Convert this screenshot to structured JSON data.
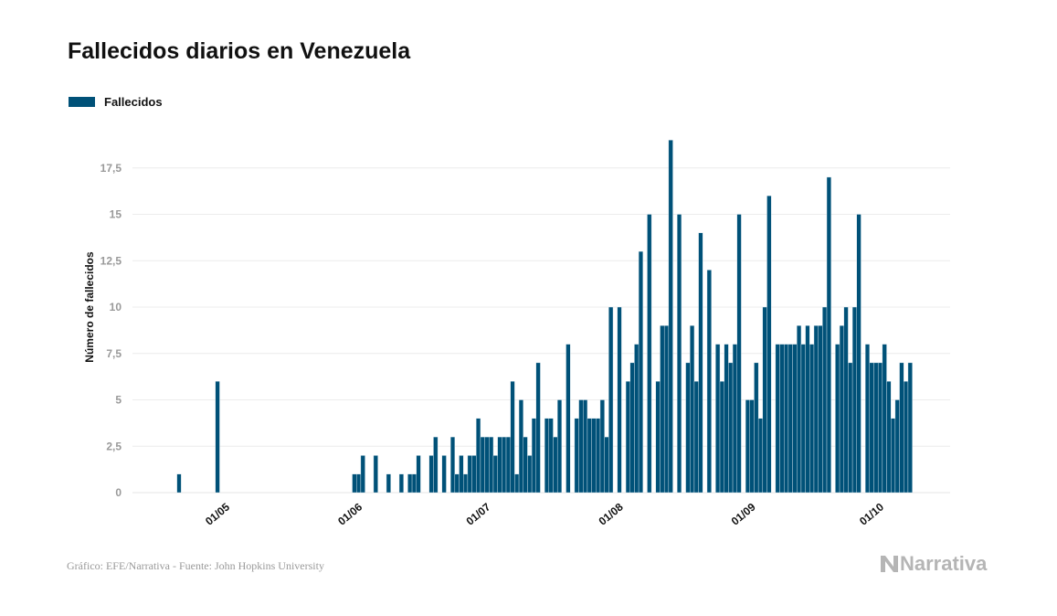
{
  "chart_data": {
    "type": "bar",
    "title": "Fallecidos diarios en Venezuela",
    "ylabel": "Número de fallecidos",
    "xlabel": "",
    "ylim": [
      0,
      19.5
    ],
    "yticks": [
      "0",
      "2,5",
      "5",
      "7,5",
      "10",
      "12,5",
      "15",
      "17,5"
    ],
    "ytick_values": [
      0,
      2.5,
      5,
      7.5,
      10,
      12.5,
      15,
      17.5
    ],
    "xtick_labels": [
      "01/05",
      "01/06",
      "01/07",
      "01/08",
      "01/09",
      "01/10"
    ],
    "legend": "top-left",
    "grid": true,
    "bar_color": "#005178",
    "series": [
      {
        "name": "Fallecidos",
        "start": "22/04",
        "x": [
          "22/04",
          "23/04",
          "24/04",
          "25/04",
          "26/04",
          "27/04",
          "28/04",
          "29/04",
          "30/04",
          "01/05",
          "02/05",
          "03/05",
          "04/05",
          "05/05",
          "06/05",
          "07/05",
          "08/05",
          "09/05",
          "10/05",
          "11/05",
          "12/05",
          "13/05",
          "14/05",
          "15/05",
          "16/05",
          "17/05",
          "18/05",
          "19/05",
          "20/05",
          "21/05",
          "22/05",
          "23/05",
          "24/05",
          "25/05",
          "26/05",
          "27/05",
          "28/05",
          "29/05",
          "30/05",
          "31/05",
          "01/06",
          "02/06",
          "03/06",
          "04/06",
          "05/06",
          "06/06",
          "07/06",
          "08/06",
          "09/06",
          "10/06",
          "11/06",
          "12/06",
          "13/06",
          "14/06",
          "15/06",
          "16/06",
          "17/06",
          "18/06",
          "19/06",
          "20/06",
          "21/06",
          "22/06",
          "23/06",
          "24/06",
          "25/06",
          "26/06",
          "27/06",
          "28/06",
          "29/06",
          "30/06",
          "01/07",
          "02/07",
          "03/07",
          "04/07",
          "05/07",
          "06/07",
          "07/07",
          "08/07",
          "09/07",
          "10/07",
          "11/07",
          "12/07",
          "13/07",
          "14/07",
          "15/07",
          "16/07",
          "17/07",
          "18/07",
          "19/07",
          "20/07",
          "21/07",
          "22/07",
          "23/07",
          "24/07",
          "25/07",
          "26/07",
          "27/07",
          "28/07",
          "29/07",
          "30/07",
          "31/07",
          "01/08",
          "02/08",
          "03/08",
          "04/08",
          "05/08",
          "06/08",
          "07/08",
          "08/08",
          "09/08",
          "10/08",
          "11/08",
          "12/08",
          "13/08",
          "14/08",
          "15/08",
          "16/08",
          "17/08",
          "18/08",
          "19/08",
          "20/08",
          "21/08",
          "22/08",
          "23/08",
          "24/08",
          "25/08",
          "26/08",
          "27/08",
          "28/08",
          "29/08",
          "30/08",
          "31/08",
          "01/09",
          "02/09",
          "03/09",
          "04/09",
          "05/09",
          "06/09",
          "07/09",
          "08/09",
          "09/09",
          "10/09",
          "11/09",
          "12/09",
          "13/09",
          "14/09",
          "15/09",
          "16/09",
          "17/09",
          "18/09",
          "19/09",
          "20/09",
          "21/09",
          "22/09",
          "23/09",
          "24/09",
          "25/09",
          "26/09",
          "27/09",
          "28/09",
          "29/09",
          "30/09",
          "01/10",
          "02/10",
          "03/10",
          "04/10",
          "05/10",
          "06/10",
          "07/10",
          "08/10",
          "09/10",
          "10/10"
        ],
        "values": [
          1,
          0,
          0,
          0,
          0,
          0,
          0,
          0,
          0,
          6,
          0,
          0,
          0,
          0,
          0,
          0,
          0,
          0,
          0,
          0,
          0,
          0,
          0,
          0,
          0,
          0,
          0,
          0,
          0,
          0,
          0,
          0,
          0,
          0,
          0,
          0,
          0,
          0,
          0,
          0,
          0,
          1,
          1,
          2,
          0,
          0,
          2,
          0,
          0,
          1,
          0,
          0,
          1,
          0,
          1,
          1,
          2,
          0,
          0,
          2,
          3,
          0,
          2,
          0,
          3,
          1,
          2,
          1,
          2,
          2,
          4,
          3,
          3,
          3,
          2,
          3,
          3,
          3,
          6,
          1,
          5,
          3,
          2,
          4,
          7,
          0,
          4,
          4,
          3,
          5,
          0,
          8,
          0,
          4,
          5,
          5,
          4,
          4,
          4,
          5,
          3,
          10,
          0,
          10,
          0,
          6,
          7,
          8,
          13,
          0,
          15,
          0,
          6,
          9,
          9,
          19,
          0,
          15,
          0,
          7,
          9,
          6,
          14,
          0,
          12,
          0,
          8,
          6,
          8,
          7,
          8,
          15,
          0,
          5,
          5,
          7,
          4,
          10,
          16,
          0,
          8,
          8,
          8,
          8,
          8,
          9,
          8,
          9,
          8,
          9,
          9,
          10,
          17,
          0,
          8,
          9,
          10,
          7,
          10,
          15,
          0,
          8,
          7,
          7,
          7,
          8,
          6,
          4,
          5,
          7,
          6,
          7
        ]
      }
    ]
  },
  "footer": {
    "source": "Gráfico: EFE/Narrativa - Fuente: John Hopkins University",
    "logo": "Narrativa"
  }
}
